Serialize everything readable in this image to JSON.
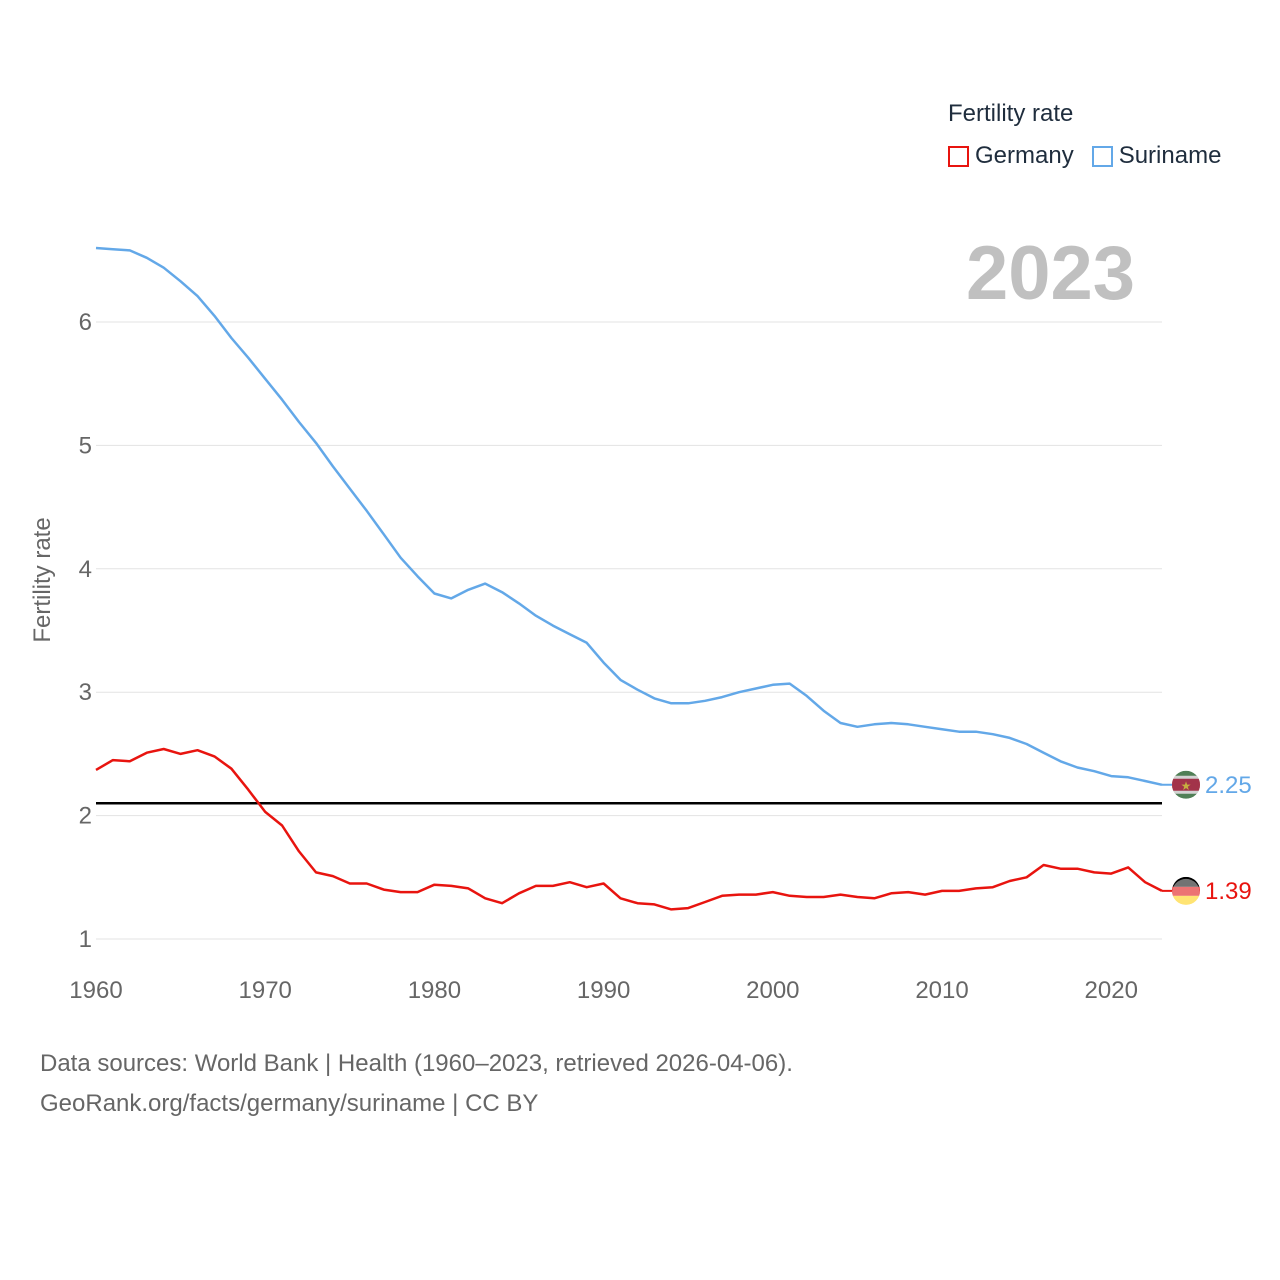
{
  "legend": {
    "title": "Fertility rate",
    "items": [
      {
        "name": "Germany",
        "color": "#e8140f"
      },
      {
        "name": "Suriname",
        "color": "#63a8e8"
      }
    ]
  },
  "year_label": "2023",
  "footer": {
    "line1": "Data sources: World Bank | Health (1960–2023, retrieved 2026-04-06).",
    "line2": "GeoRank.org/facts/germany/suriname | CC BY"
  },
  "chart_data": {
    "type": "line",
    "ylabel": "Fertility rate",
    "xlabel": "",
    "xlim": [
      1960,
      2023
    ],
    "ylim": [
      1,
      6.6
    ],
    "x_ticks": [
      "1960",
      "1970",
      "1980",
      "1990",
      "2000",
      "2010",
      "2020"
    ],
    "y_ticks": [
      "1",
      "2",
      "3",
      "4",
      "5",
      "6"
    ],
    "reference_line": 2.1,
    "x": [
      1960,
      1961,
      1962,
      1963,
      1964,
      1965,
      1966,
      1967,
      1968,
      1969,
      1970,
      1971,
      1972,
      1973,
      1974,
      1975,
      1976,
      1977,
      1978,
      1979,
      1980,
      1981,
      1982,
      1983,
      1984,
      1985,
      1986,
      1987,
      1988,
      1989,
      1990,
      1991,
      1992,
      1993,
      1994,
      1995,
      1996,
      1997,
      1998,
      1999,
      2000,
      2001,
      2002,
      2003,
      2004,
      2005,
      2006,
      2007,
      2008,
      2009,
      2010,
      2011,
      2012,
      2013,
      2014,
      2015,
      2016,
      2017,
      2018,
      2019,
      2020,
      2021,
      2022,
      2023
    ],
    "series": [
      {
        "name": "Suriname",
        "color": "#63a8e8",
        "end_label": "2.25",
        "values": [
          6.6,
          6.59,
          6.58,
          6.52,
          6.44,
          6.33,
          6.21,
          6.05,
          5.87,
          5.71,
          5.54,
          5.37,
          5.19,
          5.02,
          4.83,
          4.65,
          4.47,
          4.28,
          4.09,
          3.94,
          3.8,
          3.76,
          3.83,
          3.88,
          3.81,
          3.72,
          3.62,
          3.54,
          3.47,
          3.4,
          3.24,
          3.1,
          3.02,
          2.95,
          2.91,
          2.91,
          2.93,
          2.96,
          3.0,
          3.03,
          3.06,
          3.07,
          2.97,
          2.85,
          2.75,
          2.72,
          2.74,
          2.75,
          2.74,
          2.72,
          2.7,
          2.68,
          2.68,
          2.66,
          2.63,
          2.58,
          2.51,
          2.44,
          2.39,
          2.36,
          2.32,
          2.31,
          2.28,
          2.25
        ]
      },
      {
        "name": "Germany",
        "color": "#e8140f",
        "end_label": "1.39",
        "values": [
          2.37,
          2.45,
          2.44,
          2.51,
          2.54,
          2.5,
          2.53,
          2.48,
          2.38,
          2.21,
          2.03,
          1.92,
          1.71,
          1.54,
          1.51,
          1.45,
          1.45,
          1.4,
          1.38,
          1.38,
          1.44,
          1.43,
          1.41,
          1.33,
          1.29,
          1.37,
          1.43,
          1.43,
          1.46,
          1.42,
          1.45,
          1.33,
          1.29,
          1.28,
          1.24,
          1.25,
          1.3,
          1.35,
          1.36,
          1.36,
          1.38,
          1.35,
          1.34,
          1.34,
          1.36,
          1.34,
          1.33,
          1.37,
          1.38,
          1.36,
          1.39,
          1.39,
          1.41,
          1.42,
          1.47,
          1.5,
          1.6,
          1.57,
          1.57,
          1.54,
          1.53,
          1.58,
          1.46,
          1.39
        ]
      }
    ]
  }
}
